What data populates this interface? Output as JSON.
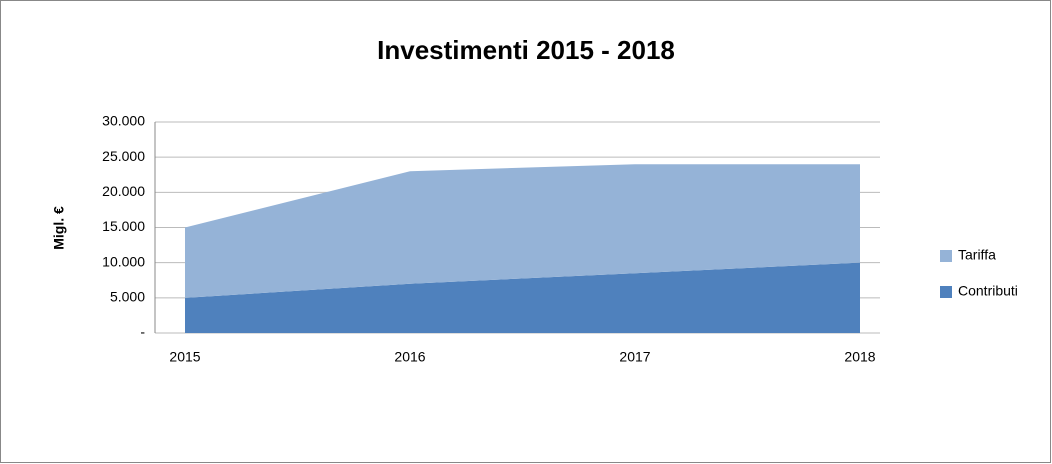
{
  "chart_data": {
    "type": "area",
    "stacked": true,
    "title": "Investimenti 2015 - 2018",
    "y_label": "Migl. €",
    "categories": [
      "2015",
      "2016",
      "2017",
      "2018"
    ],
    "series": [
      {
        "name": "Contributi",
        "color": "#4f81bd",
        "values": [
          5000,
          7000,
          8500,
          10000
        ]
      },
      {
        "name": "Tariffa",
        "color": "#95b3d7",
        "values": [
          10000,
          16000,
          15500,
          14000
        ]
      }
    ],
    "ylim": [
      0,
      30000
    ],
    "yticks": [
      {
        "value": 0,
        "label": "-"
      },
      {
        "value": 5000,
        "label": "5.000"
      },
      {
        "value": 10000,
        "label": "10.000"
      },
      {
        "value": 15000,
        "label": "15.000"
      },
      {
        "value": 20000,
        "label": "20.000"
      },
      {
        "value": 25000,
        "label": "25.000"
      },
      {
        "value": 30000,
        "label": "30.000"
      }
    ],
    "grid": true,
    "legend": "right"
  }
}
